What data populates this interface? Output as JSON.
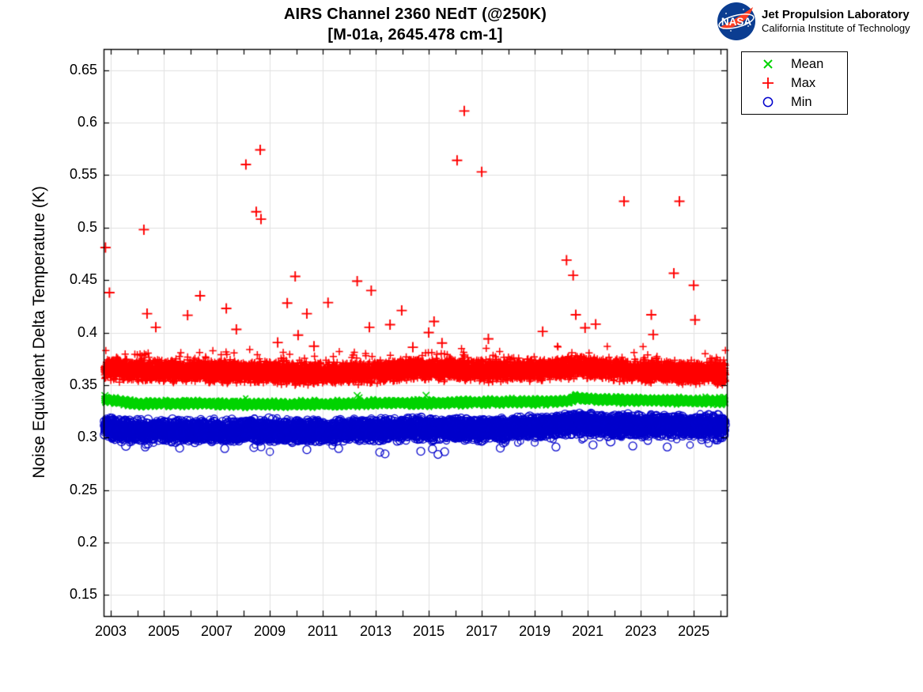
{
  "header": {
    "logo": {
      "agency": "NASA",
      "org_line1": "Jet Propulsion Laboratory",
      "org_line2": "California Institute of Technology",
      "meatball_blue": "#0b3d91",
      "meatball_red": "#fc3d21"
    }
  },
  "chart_data": {
    "type": "scatter",
    "title_line1": "AIRS Channel 2360 NEdT (@250K)",
    "title_line2": "[M-01a, 2645.478 cm-1]",
    "xlabel": "",
    "ylabel": "Noise Equivalent Delta Temperature (K)",
    "xlim": [
      2002.73,
      2026.25
    ],
    "ylim": [
      0.13,
      0.67
    ],
    "x_tick_values": [
      2003,
      2005,
      2007,
      2009,
      2011,
      2013,
      2015,
      2017,
      2019,
      2021,
      2023,
      2025
    ],
    "x_tick_labels": [
      "2003",
      "2005",
      "2007",
      "2009",
      "2011",
      "2013",
      "2015",
      "2017",
      "2019",
      "2021",
      "2023",
      "2025"
    ],
    "x_minor": {
      "start": 2003,
      "end": 2026,
      "step": 1
    },
    "y_tick_values": [
      0.15,
      0.2,
      0.25,
      0.3,
      0.35,
      0.4,
      0.45,
      0.5,
      0.55,
      0.6,
      0.65
    ],
    "y_tick_labels": [
      "0.15",
      "0.2",
      "0.25",
      "0.3",
      "0.35",
      "0.4",
      "0.45",
      "0.5",
      "0.55",
      "0.6",
      "0.65"
    ],
    "grid": true,
    "grid_color": "#e1e1e1",
    "axis_color": "#000000",
    "background": "#ffffff",
    "legend": {
      "position": "outside-top-right",
      "items": [
        {
          "label": "Mean",
          "marker": "x",
          "color": "#00d400"
        },
        {
          "label": "Max",
          "marker": "plus",
          "color": "#ff0000"
        },
        {
          "label": "Min",
          "marker": "circle",
          "color": "#0000cc"
        }
      ]
    },
    "series": [
      {
        "name": "Max",
        "marker": "plus",
        "color": "#ff0000",
        "seed": 42,
        "x_start": 2002.75,
        "x_end": 2026.2,
        "points_per_year": 310,
        "spread": 0.0108,
        "tail_up": {
          "p": 0.085,
          "max": 0.02
        },
        "center_keypoints": [
          [
            2002.75,
            0.3652
          ],
          [
            2003.5,
            0.3638
          ],
          [
            2006,
            0.3632
          ],
          [
            2009,
            0.362
          ],
          [
            2011,
            0.3608
          ],
          [
            2013,
            0.362
          ],
          [
            2014.5,
            0.365
          ],
          [
            2016,
            0.3642
          ],
          [
            2018,
            0.3638
          ],
          [
            2019.8,
            0.3652
          ],
          [
            2020.6,
            0.3668
          ],
          [
            2021.5,
            0.3652
          ],
          [
            2023,
            0.3628
          ],
          [
            2024.5,
            0.3618
          ],
          [
            2026.2,
            0.3608
          ]
        ],
        "outliers": [
          [
            2002.8,
            0.481
          ],
          [
            2002.95,
            0.438
          ],
          [
            2004.25,
            0.498
          ],
          [
            2004.37,
            0.418
          ],
          [
            2004.7,
            0.405
          ],
          [
            2005.9,
            0.4165
          ],
          [
            2006.37,
            0.435
          ],
          [
            2007.36,
            0.423
          ],
          [
            2007.74,
            0.403
          ],
          [
            2008.1,
            0.56
          ],
          [
            2008.49,
            0.515
          ],
          [
            2008.64,
            0.574
          ],
          [
            2008.67,
            0.508
          ],
          [
            2009.3,
            0.3905
          ],
          [
            2009.66,
            0.428
          ],
          [
            2009.96,
            0.4535
          ],
          [
            2010.07,
            0.3975
          ],
          [
            2010.4,
            0.418
          ],
          [
            2010.67,
            0.387
          ],
          [
            2011.2,
            0.4285
          ],
          [
            2012.3,
            0.449
          ],
          [
            2012.76,
            0.405
          ],
          [
            2012.83,
            0.44
          ],
          [
            2013.54,
            0.4075
          ],
          [
            2013.98,
            0.421
          ],
          [
            2014.4,
            0.386
          ],
          [
            2015.0,
            0.4
          ],
          [
            2015.2,
            0.4105
          ],
          [
            2015.5,
            0.39
          ],
          [
            2016.07,
            0.564
          ],
          [
            2016.34,
            0.611
          ],
          [
            2017.0,
            0.553
          ],
          [
            2017.25,
            0.394
          ],
          [
            2019.3,
            0.401
          ],
          [
            2020.2,
            0.469
          ],
          [
            2020.45,
            0.4545
          ],
          [
            2020.55,
            0.417
          ],
          [
            2020.9,
            0.4045
          ],
          [
            2021.3,
            0.408
          ],
          [
            2022.37,
            0.525
          ],
          [
            2023.4,
            0.417
          ],
          [
            2023.47,
            0.398
          ],
          [
            2024.25,
            0.4565
          ],
          [
            2024.46,
            0.525
          ],
          [
            2025.0,
            0.445
          ],
          [
            2025.05,
            0.412
          ]
        ]
      },
      {
        "name": "Mean",
        "marker": "x",
        "color": "#00d400",
        "seed": 1337,
        "x_start": 2002.75,
        "x_end": 2026.2,
        "points_per_year": 310,
        "spread": 0.0032,
        "tail_up": {
          "p": 0.02,
          "max": 0.004
        },
        "center_keypoints": [
          [
            2002.75,
            0.3368
          ],
          [
            2003.2,
            0.3348
          ],
          [
            2004,
            0.3323
          ],
          [
            2006,
            0.3326
          ],
          [
            2008,
            0.3318
          ],
          [
            2010,
            0.3316
          ],
          [
            2012,
            0.3321
          ],
          [
            2013.5,
            0.333
          ],
          [
            2015,
            0.3328
          ],
          [
            2016,
            0.3334
          ],
          [
            2018,
            0.3339
          ],
          [
            2019.6,
            0.3341
          ],
          [
            2020.3,
            0.3352
          ],
          [
            2020.55,
            0.3386
          ],
          [
            2020.9,
            0.3369
          ],
          [
            2021.5,
            0.3361
          ],
          [
            2023,
            0.3356
          ],
          [
            2024.5,
            0.3351
          ],
          [
            2026.2,
            0.3344
          ]
        ],
        "outliers": [
          [
            2002.78,
            0.34
          ],
          [
            2012.3,
            0.34
          ],
          [
            2014.9,
            0.3402
          ]
        ]
      },
      {
        "name": "Min",
        "marker": "circle",
        "color": "#0000cc",
        "seed": 2024,
        "x_start": 2002.75,
        "x_end": 2026.2,
        "points_per_year": 290,
        "spread": 0.0112,
        "tail_down": {
          "p": 0.05,
          "max": 0.014
        },
        "center_keypoints": [
          [
            2002.75,
            0.3108
          ],
          [
            2003.3,
            0.3078
          ],
          [
            2005,
            0.3068
          ],
          [
            2007,
            0.3062
          ],
          [
            2009,
            0.3068
          ],
          [
            2011,
            0.3063
          ],
          [
            2013,
            0.3073
          ],
          [
            2014.5,
            0.3088
          ],
          [
            2016,
            0.3082
          ],
          [
            2018,
            0.309
          ],
          [
            2019.5,
            0.3106
          ],
          [
            2020.5,
            0.314
          ],
          [
            2021.3,
            0.3122
          ],
          [
            2023,
            0.3116
          ],
          [
            2024.5,
            0.311
          ],
          [
            2026.2,
            0.3106
          ]
        ],
        "outliers": [
          [
            2004.3,
            0.291
          ],
          [
            2005.6,
            0.29
          ],
          [
            2007.3,
            0.2895
          ],
          [
            2008.4,
            0.2905
          ],
          [
            2010.4,
            0.2885
          ],
          [
            2011.6,
            0.2895
          ],
          [
            2013.15,
            0.286
          ],
          [
            2013.35,
            0.2845
          ],
          [
            2014.7,
            0.287
          ],
          [
            2015.35,
            0.284
          ],
          [
            2015.6,
            0.2865
          ],
          [
            2017.7,
            0.29
          ],
          [
            2019.8,
            0.291
          ],
          [
            2021.2,
            0.293
          ],
          [
            2022.7,
            0.292
          ],
          [
            2024.0,
            0.291
          ],
          [
            2025.3,
            0.298
          ]
        ]
      }
    ]
  }
}
